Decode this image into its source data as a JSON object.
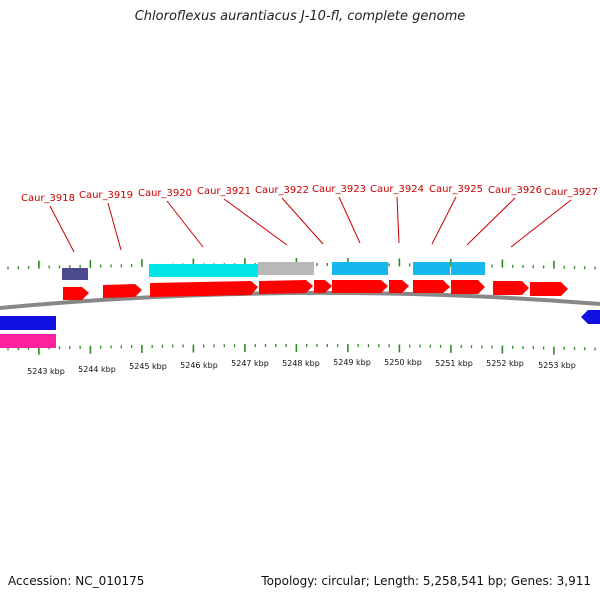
{
  "title": "Chloroflexus aurantiacus J-10-fl, complete genome",
  "footer": {
    "accession": "Accession: NC_010175",
    "summary": "Topology: circular; Length: 5,258,541 bp; Genes: 3,911"
  },
  "colors": {
    "cds": "#ff0000",
    "label": "#cc0000",
    "backbone": "#888888",
    "tick": "#2e8b22",
    "cyan": "#00e5e8",
    "grey": "#b8b8b8",
    "sky": "#14b8ee",
    "navy": "#4a4a8c",
    "blue": "#1010e0",
    "magenta": "#ff20a0"
  },
  "kbp_labels": [
    "5243 kbp",
    "5244 kbp",
    "5245 kbp",
    "5246 kbp",
    "5247 kbp",
    "5248 kbp",
    "5249 kbp",
    "5250 kbp",
    "5251 kbp",
    "5252 kbp",
    "5253 kbp"
  ],
  "gene_labels": [
    "Caur_3918",
    "Caur_3919",
    "Caur_3920",
    "Caur_3921",
    "Caur_3922",
    "Caur_3923",
    "Caur_3924",
    "Caur_3925",
    "Caur_3926",
    "Caur_3927"
  ]
}
